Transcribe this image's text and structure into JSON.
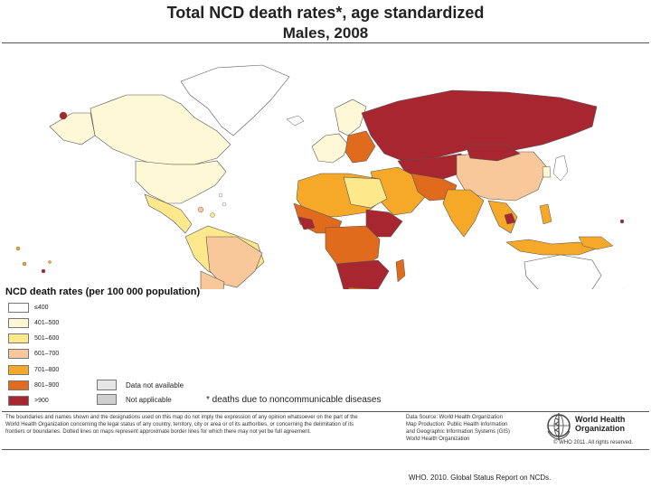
{
  "title": "Total NCD death rates*, age standardized",
  "subtitle": "Males, 2008",
  "legend": {
    "title": "NCD death rates (per 100 000 population)",
    "items": [
      {
        "label": "≤400",
        "color": "#ffffff"
      },
      {
        "label": "401–500",
        "color": "#fff8d6"
      },
      {
        "label": "501–600",
        "color": "#fde88c"
      },
      {
        "label": "601–700",
        "color": "#f8c89a"
      },
      {
        "label": "701–800",
        "color": "#f6a829"
      },
      {
        "label": "801–900",
        "color": "#e06b1d"
      },
      {
        "label": ">900",
        "color": "#a8262f"
      }
    ],
    "data_not_available": {
      "label": "Data not available",
      "color": "#e6e6e6"
    },
    "not_applicable": {
      "label": "Not applicable",
      "color": "#cfcfcf"
    }
  },
  "footnote": "* deaths due to noncommunicable diseases",
  "disclaimer": "The boundaries and names shown and the designations used on this map do not imply the expression of any opinion whatsoever on the part of the World Health Organization concerning the legal status of any country, territory, city or area or of its authorities, or concerning the delimitation of its frontiers or boundaries. Dotted lines on maps represent approximate border lines for which there may not yet be full agreement.",
  "source_lines": [
    "Data Source: World Health Organization",
    "Map Production: Public Health Information",
    "and Geographic Information Systems (GIS)",
    "World Health Organization"
  ],
  "who_name_line1": "World Health",
  "who_name_line2": "Organization",
  "copyright": "© WHO 2011. All rights reserved.",
  "citation": "WHO. 2010. Global Status Report on NCDs."
}
